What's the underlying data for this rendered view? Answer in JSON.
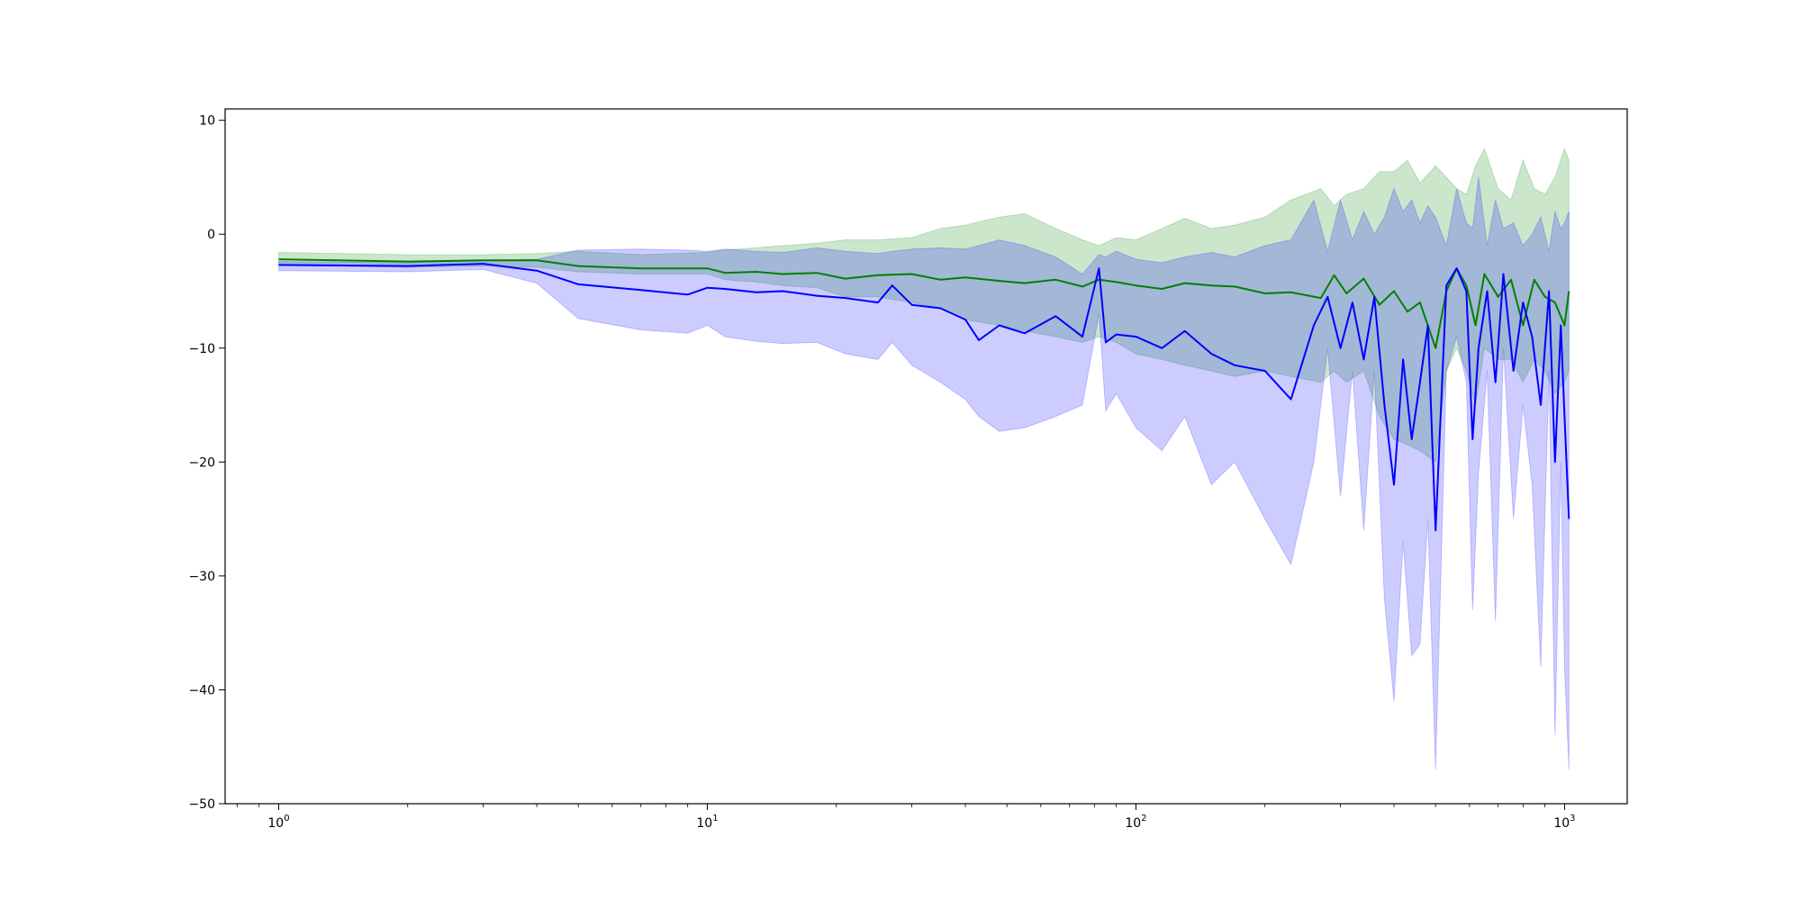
{
  "chart_data": {
    "type": "line",
    "title": "",
    "xlabel": "",
    "ylabel": "",
    "xscale": "log",
    "xlim": [
      0.75,
      1400
    ],
    "ylim": [
      -50,
      11
    ],
    "grid": false,
    "legend": "none",
    "xticks": [
      {
        "value": 1,
        "base": "10",
        "exp": "0"
      },
      {
        "value": 10,
        "base": "10",
        "exp": "1"
      },
      {
        "value": 100,
        "base": "10",
        "exp": "2"
      },
      {
        "value": 1000,
        "base": "10",
        "exp": "3"
      }
    ],
    "yticks": [
      {
        "value": 10,
        "label": "10"
      },
      {
        "value": 0,
        "label": "0"
      },
      {
        "value": -10,
        "label": "−10"
      },
      {
        "value": -20,
        "label": "−20"
      },
      {
        "value": -30,
        "label": "−30"
      },
      {
        "value": -40,
        "label": "−40"
      },
      {
        "value": -50,
        "label": "−50"
      }
    ],
    "series": [
      {
        "color": "#008000",
        "band_color": "#008000",
        "band_opacity": 0.2,
        "x": [
          1,
          2,
          3,
          4,
          5,
          7,
          10,
          11,
          13,
          15,
          18,
          21,
          25,
          30,
          35,
          40,
          48,
          55,
          65,
          75,
          82,
          90,
          100,
          115,
          130,
          150,
          170,
          200,
          230,
          270,
          290,
          310,
          340,
          370,
          400,
          430,
          460,
          500,
          530,
          560,
          590,
          620,
          650,
          700,
          750,
          800,
          850,
          900,
          950,
          1000,
          1024
        ],
        "y": [
          -2.2,
          -2.4,
          -2.3,
          -2.3,
          -2.8,
          -3.0,
          -3.0,
          -3.4,
          -3.3,
          -3.5,
          -3.4,
          -3.9,
          -3.6,
          -3.5,
          -4.0,
          -3.8,
          -4.1,
          -4.3,
          -4.0,
          -4.6,
          -4.0,
          -4.2,
          -4.5,
          -4.8,
          -4.3,
          -4.5,
          -4.6,
          -5.2,
          -5.1,
          -5.6,
          -3.6,
          -5.2,
          -3.9,
          -6.2,
          -5.0,
          -6.8,
          -6.0,
          -10.0,
          -5.0,
          -3.0,
          -4.5,
          -8.0,
          -3.5,
          -5.5,
          -4.0,
          -8.0,
          -4.0,
          -5.5,
          -6.0,
          -8.0,
          -5.0
        ],
        "upper": [
          -1.6,
          -1.8,
          -1.8,
          -1.7,
          -1.5,
          -1.8,
          -1.6,
          -1.4,
          -1.2,
          -1.0,
          -0.8,
          -0.5,
          -0.5,
          -0.3,
          0.5,
          0.8,
          1.5,
          1.8,
          0.5,
          -0.5,
          -1.0,
          -0.3,
          -0.5,
          0.5,
          1.4,
          0.5,
          0.8,
          1.5,
          3.0,
          4.0,
          2.5,
          3.5,
          4.0,
          5.5,
          5.5,
          6.5,
          4.5,
          6.0,
          5.0,
          4.0,
          3.5,
          6.0,
          7.5,
          4.0,
          3.0,
          6.5,
          4.0,
          3.5,
          5.0,
          7.5,
          6.5
        ],
        "lower": [
          -2.7,
          -2.9,
          -2.8,
          -2.9,
          -3.3,
          -3.5,
          -3.5,
          -4.0,
          -4.2,
          -4.5,
          -4.7,
          -5.5,
          -5.5,
          -6.0,
          -6.5,
          -7.5,
          -8.0,
          -8.5,
          -9.0,
          -9.5,
          -9.0,
          -9.5,
          -10.5,
          -11.0,
          -11.5,
          -12.0,
          -12.5,
          -12.0,
          -12.5,
          -13.0,
          -12.0,
          -13.0,
          -12.0,
          -16.0,
          -18.0,
          -18.5,
          -19.0,
          -20.0,
          -12.0,
          -10.0,
          -12.0,
          -15.0,
          -10.0,
          -11.0,
          -11.0,
          -13.0,
          -11.0,
          -12.0,
          -14.0,
          -13.0,
          -12.0
        ]
      },
      {
        "color": "#0000ff",
        "band_color": "#0000ff",
        "band_opacity": 0.2,
        "x": [
          1,
          2,
          3,
          4,
          5,
          7,
          9,
          10,
          11,
          13,
          15,
          18,
          21,
          25,
          27,
          30,
          35,
          40,
          43,
          48,
          55,
          65,
          75,
          82,
          85,
          90,
          100,
          115,
          130,
          150,
          170,
          200,
          230,
          260,
          280,
          300,
          320,
          340,
          360,
          380,
          400,
          420,
          440,
          460,
          480,
          500,
          530,
          560,
          590,
          610,
          630,
          660,
          690,
          720,
          760,
          800,
          840,
          880,
          920,
          950,
          980,
          1000,
          1024
        ],
        "y": [
          -2.7,
          -2.8,
          -2.6,
          -3.2,
          -4.4,
          -4.9,
          -5.3,
          -4.7,
          -4.8,
          -5.1,
          -5.0,
          -5.4,
          -5.6,
          -6.0,
          -4.5,
          -6.2,
          -6.5,
          -7.5,
          -9.3,
          -8.0,
          -8.7,
          -7.2,
          -9.0,
          -3.0,
          -9.5,
          -8.8,
          -9.0,
          -10.0,
          -8.5,
          -10.5,
          -11.5,
          -12.0,
          -14.5,
          -8.0,
          -5.5,
          -10.0,
          -6.0,
          -11.0,
          -5.5,
          -15.0,
          -22.0,
          -11.0,
          -18.0,
          -13.0,
          -8.0,
          -26.0,
          -4.5,
          -3.0,
          -5.0,
          -18.0,
          -10.0,
          -5.0,
          -13.0,
          -3.5,
          -12.0,
          -6.0,
          -9.0,
          -15.0,
          -5.0,
          -20.0,
          -8.0,
          -16.0,
          -25.0
        ],
        "upper": [
          -2.4,
          -2.5,
          -2.3,
          -2.2,
          -1.4,
          -1.3,
          -1.4,
          -1.5,
          -1.3,
          -1.5,
          -1.6,
          -1.2,
          -1.5,
          -1.7,
          -1.5,
          -1.3,
          -1.2,
          -1.3,
          -1.0,
          -0.5,
          -1.0,
          -2.0,
          -3.5,
          -1.8,
          -2.0,
          -1.5,
          -2.2,
          -2.5,
          -2.0,
          -1.6,
          -2.0,
          -1.0,
          -0.5,
          3.0,
          -1.5,
          3.0,
          -0.5,
          2.0,
          0.0,
          1.5,
          4.0,
          2.0,
          3.0,
          1.0,
          2.5,
          1.5,
          -1.0,
          4.0,
          1.0,
          0.5,
          5.0,
          -1.0,
          3.0,
          0.5,
          1.0,
          -1.0,
          0.0,
          1.5,
          -1.5,
          2.0,
          0.5,
          1.0,
          2.0
        ],
        "lower": [
          -3.2,
          -3.3,
          -3.1,
          -4.3,
          -7.4,
          -8.4,
          -8.7,
          -8.0,
          -9.0,
          -9.4,
          -9.6,
          -9.5,
          -10.5,
          -11.0,
          -9.5,
          -11.5,
          -13.0,
          -14.5,
          -16.0,
          -17.3,
          -17.0,
          -16.0,
          -15.0,
          -7.0,
          -15.5,
          -14.0,
          -17.0,
          -19.0,
          -16.0,
          -22.0,
          -20.0,
          -25.0,
          -29.0,
          -20.0,
          -10.0,
          -23.0,
          -12.0,
          -26.0,
          -12.0,
          -32.0,
          -41.0,
          -27.0,
          -37.0,
          -36.0,
          -25.0,
          -47.0,
          -12.0,
          -9.0,
          -13.0,
          -33.0,
          -21.0,
          -12.0,
          -34.0,
          -10.0,
          -25.0,
          -15.0,
          -22.0,
          -38.0,
          -12.0,
          -44.0,
          -20.0,
          -38.0,
          -47.0
        ]
      }
    ]
  }
}
